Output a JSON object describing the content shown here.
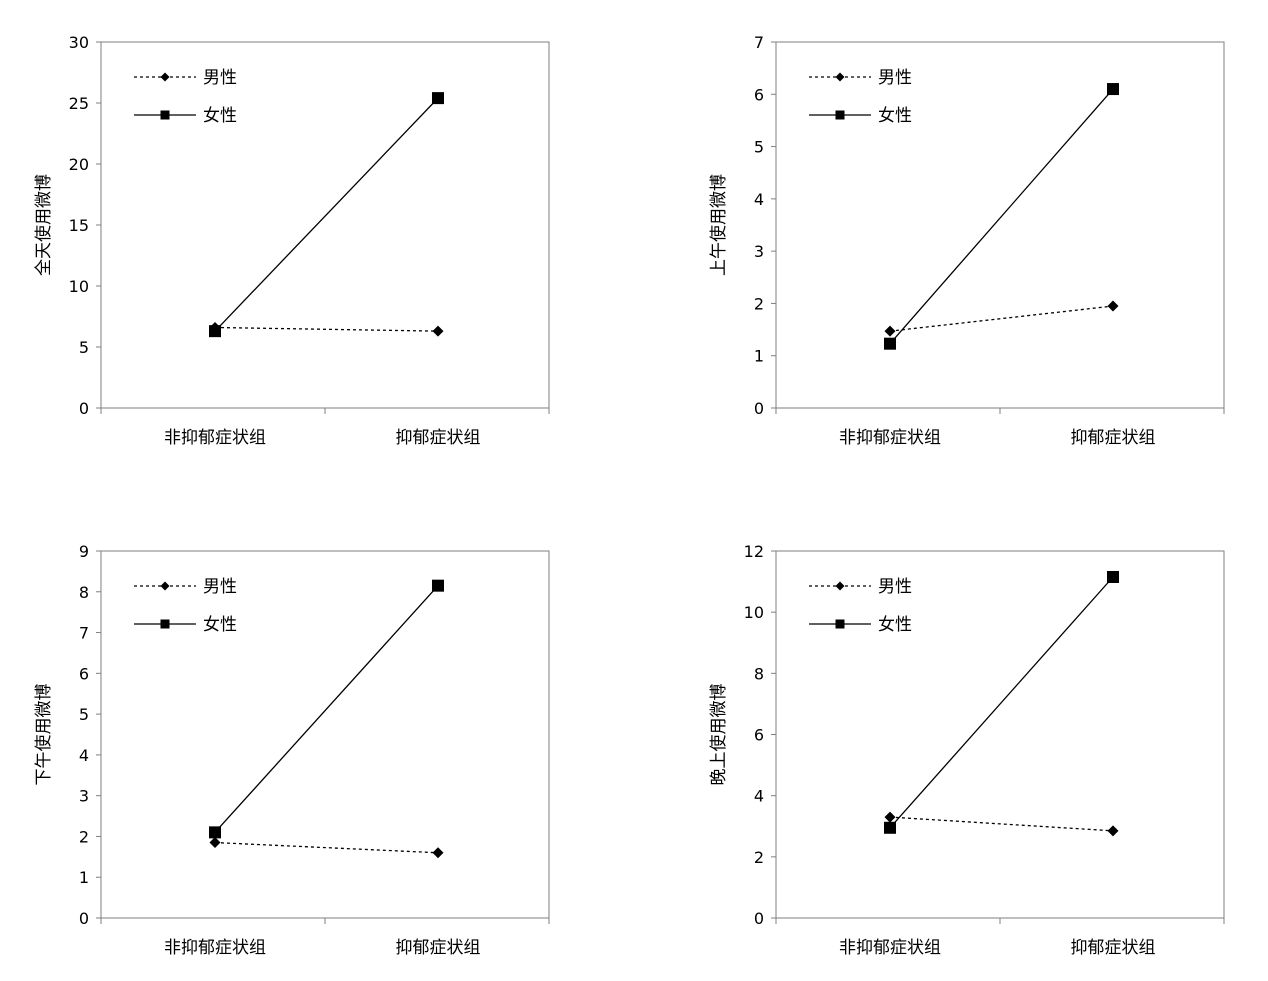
{
  "chart_data": [
    {
      "type": "line",
      "ylabel": "全天使用微博",
      "categories": [
        "非抑郁症状组",
        "抑郁症状组"
      ],
      "ylim": [
        0,
        30
      ],
      "yticks": [
        0,
        5,
        10,
        15,
        20,
        25,
        30
      ],
      "series": [
        {
          "name": "男性",
          "values": [
            6.6,
            6.3
          ],
          "line": "dotted",
          "marker": "diamond"
        },
        {
          "name": "女性",
          "values": [
            6.3,
            25.4
          ],
          "line": "solid",
          "marker": "square"
        }
      ],
      "legend": "top-left"
    },
    {
      "type": "line",
      "ylabel": "上午使用微博",
      "categories": [
        "非抑郁症状组",
        "抑郁症状组"
      ],
      "ylim": [
        0,
        7
      ],
      "yticks": [
        0,
        1,
        2,
        3,
        4,
        5,
        6,
        7
      ],
      "series": [
        {
          "name": "男性",
          "values": [
            1.47,
            1.95
          ],
          "line": "dotted",
          "marker": "diamond"
        },
        {
          "name": "女性",
          "values": [
            1.23,
            6.1
          ],
          "line": "solid",
          "marker": "square"
        }
      ],
      "legend": "top-left"
    },
    {
      "type": "line",
      "ylabel": "下午使用微博",
      "categories": [
        "非抑郁症状组",
        "抑郁症状组"
      ],
      "ylim": [
        0,
        9
      ],
      "yticks": [
        0,
        1,
        2,
        3,
        4,
        5,
        6,
        7,
        8,
        9
      ],
      "series": [
        {
          "name": "男性",
          "values": [
            1.85,
            1.6
          ],
          "line": "dotted",
          "marker": "diamond"
        },
        {
          "name": "女性",
          "values": [
            2.1,
            8.15
          ],
          "line": "solid",
          "marker": "square"
        }
      ],
      "legend": "top-left"
    },
    {
      "type": "line",
      "ylabel": "晚上使用微博",
      "categories": [
        "非抑郁症状组",
        "抑郁症状组"
      ],
      "ylim": [
        0,
        12
      ],
      "yticks": [
        0,
        2,
        4,
        6,
        8,
        10,
        12
      ],
      "series": [
        {
          "name": "男性",
          "values": [
            3.3,
            2.85
          ],
          "line": "dotted",
          "marker": "diamond"
        },
        {
          "name": "女性",
          "values": [
            2.95,
            11.15
          ],
          "line": "solid",
          "marker": "square"
        }
      ],
      "legend": "top-left"
    }
  ]
}
